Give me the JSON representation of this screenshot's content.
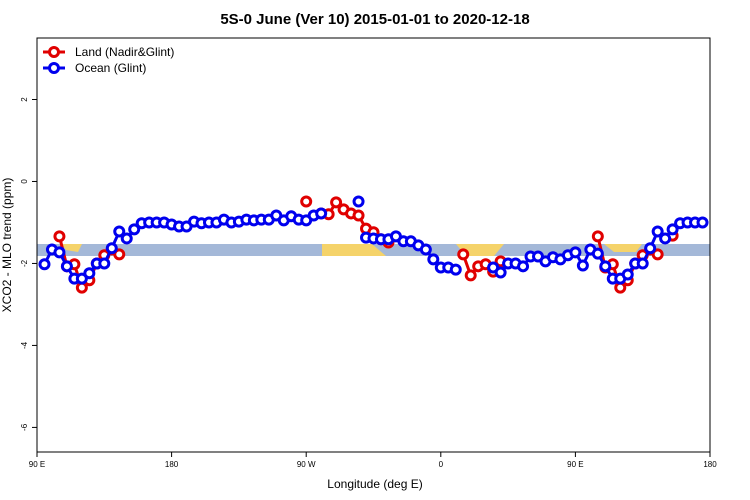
{
  "chart_data": {
    "type": "line",
    "title": "5S-0 June (Ver 10)   2015-01-01 to 2020-12-18",
    "xlabel": "Longitude (deg E)",
    "ylabel": "XCO2 - MLO trend (ppm)",
    "xlim": [
      90,
      540
    ],
    "ylim": [
      -6.6,
      3.5
    ],
    "xticks": [
      {
        "value": 90,
        "label": "90 E"
      },
      {
        "value": 180,
        "label": "180"
      },
      {
        "value": 270,
        "label": "90 W"
      },
      {
        "value": 360,
        "label": "0"
      },
      {
        "value": 450,
        "label": "90 E"
      },
      {
        "value": 540,
        "label": "180"
      }
    ],
    "yticks": [
      2,
      0,
      -2,
      -4,
      -6
    ],
    "legend": "top-left",
    "series": [
      {
        "name": "Land (Nadir&Glint)",
        "color": "#e00000",
        "x": [
          105,
          110,
          115,
          120,
          125,
          130,
          135,
          140,
          145,
          null,
          270,
          null,
          280,
          285,
          290,
          295,
          300,
          305,
          310,
          315,
          320,
          325,
          null,
          375,
          380,
          385,
          390,
          395,
          400,
          null,
          465,
          470,
          475,
          480,
          485,
          490,
          495,
          500,
          505,
          null,
          515
        ],
        "values": [
          -1.34,
          -2.07,
          -2.02,
          -2.59,
          -2.41,
          -2.0,
          -1.8,
          -1.66,
          -1.78,
          null,
          -0.49,
          null,
          -0.78,
          -0.8,
          -0.51,
          -0.68,
          -0.78,
          -0.83,
          -1.15,
          -1.24,
          -1.41,
          -1.49,
          null,
          -1.78,
          -2.29,
          -2.07,
          -2.02,
          -2.2,
          -1.95,
          null,
          -1.34,
          -2.1,
          -2.02,
          -2.59,
          -2.41,
          -2.0,
          -1.8,
          -1.66,
          -1.78,
          null,
          -1.32
        ]
      },
      {
        "name": "Ocean (Glint)",
        "color": "#0000ee",
        "x": [
          95,
          100,
          105,
          110,
          115,
          120,
          125,
          130,
          135,
          140,
          145,
          150,
          155,
          160,
          165,
          170,
          175,
          180,
          185,
          190,
          195,
          200,
          205,
          210,
          215,
          220,
          225,
          230,
          235,
          240,
          245,
          250,
          255,
          260,
          265,
          270,
          275,
          280,
          null,
          305,
          null,
          310,
          315,
          320,
          325,
          330,
          335,
          340,
          345,
          350,
          355,
          360,
          365,
          370,
          null,
          395,
          400,
          405,
          410,
          415,
          420,
          425,
          430,
          435,
          440,
          445,
          450,
          455,
          460,
          465,
          470,
          475,
          480,
          485,
          490,
          495,
          500,
          505,
          510,
          515,
          520,
          525,
          530,
          535
        ],
        "values": [
          -2.02,
          -1.66,
          -1.73,
          -2.07,
          -2.37,
          -2.37,
          -2.24,
          -2.0,
          -2.0,
          -1.63,
          -1.22,
          -1.39,
          -1.17,
          -1.02,
          -1.0,
          -1.0,
          -1.0,
          -1.05,
          -1.1,
          -1.1,
          -0.98,
          -1.02,
          -1.0,
          -1.0,
          -0.93,
          -1.0,
          -0.98,
          -0.93,
          -0.95,
          -0.93,
          -0.93,
          -0.83,
          -0.95,
          -0.85,
          -0.93,
          -0.95,
          -0.83,
          -0.78,
          null,
          -0.49,
          null,
          -1.37,
          -1.39,
          -1.41,
          -1.41,
          -1.34,
          -1.46,
          -1.46,
          -1.56,
          -1.66,
          -1.9,
          -2.1,
          -2.1,
          -2.15,
          null,
          -2.1,
          -2.22,
          -2.0,
          -2.0,
          -2.07,
          -1.83,
          -1.83,
          -1.95,
          -1.85,
          -1.9,
          -1.8,
          -1.73,
          -2.05,
          -1.66,
          -1.76,
          -2.07,
          -2.37,
          -2.37,
          -2.27,
          -2.0,
          -2.0,
          -1.63,
          -1.22,
          -1.39,
          -1.17,
          -1.02,
          -1.0,
          -1.0,
          -1.0
        ]
      }
    ]
  }
}
